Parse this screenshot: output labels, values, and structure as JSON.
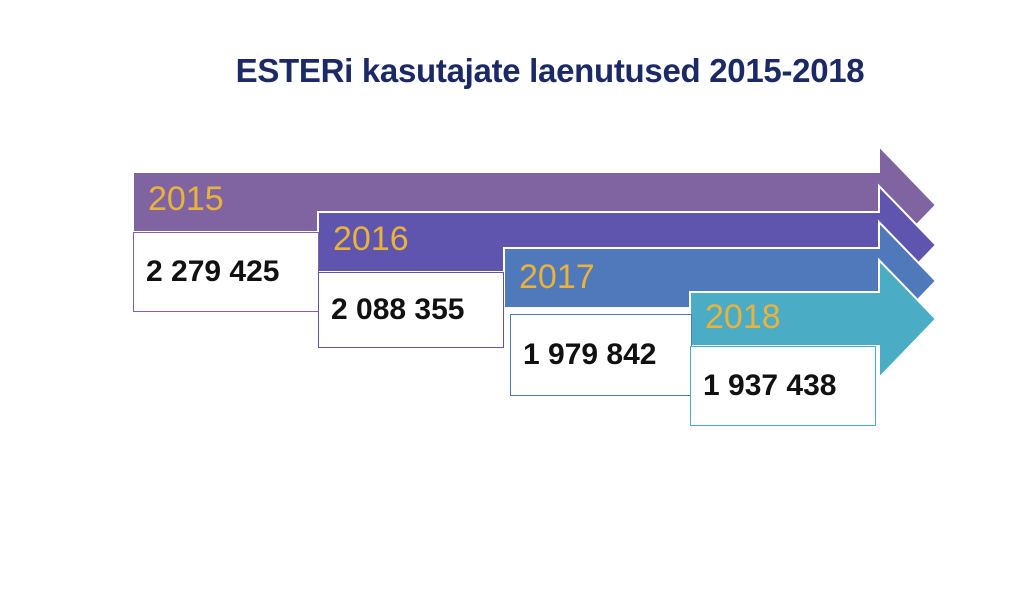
{
  "title": "ESTERi kasutajate laenutused 2015-2018",
  "colors": {
    "title": "#1b2a66",
    "year_text": "#e9b23a",
    "arrow_2015": "#8064a2",
    "arrow_2016": "#6055ae",
    "arrow_2017": "#5079bb",
    "arrow_2018": "#4bacc6"
  },
  "items": [
    {
      "year": "2015",
      "value": "2 279 425"
    },
    {
      "year": "2016",
      "value": "2 088 355"
    },
    {
      "year": "2017",
      "value": "1 979 842"
    },
    {
      "year": "2018",
      "value": "1 937 438"
    }
  ]
}
